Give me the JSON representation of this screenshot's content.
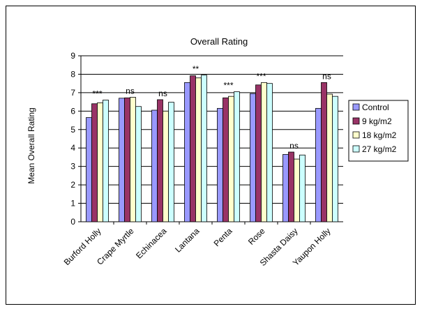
{
  "chart_data": {
    "type": "bar",
    "title": "Overall Rating",
    "ylabel": "Mean Overall Rating",
    "xlabel": "",
    "ylim": [
      0,
      9
    ],
    "yticks": [
      0,
      1,
      2,
      3,
      4,
      5,
      6,
      7,
      8,
      9
    ],
    "grid": true,
    "legend_position": "right",
    "categories": [
      "Burford Holly",
      "Crape Myrtle",
      "Echinacea",
      "Lantana",
      "Penta",
      "Rose",
      "Shasta Daisy",
      "Yaupon Holly"
    ],
    "annotations": [
      "***",
      "ns",
      "ns",
      "**",
      "***",
      "***",
      "ns",
      "ns"
    ],
    "series": [
      {
        "name": "Control",
        "color": "#9999ff",
        "values": [
          5.65,
          6.7,
          6.05,
          7.55,
          6.15,
          6.95,
          3.65,
          6.15
        ]
      },
      {
        "name": "9 kg/m2",
        "color": "#993366",
        "values": [
          6.4,
          6.72,
          6.62,
          7.92,
          6.72,
          7.42,
          3.78,
          7.55
        ]
      },
      {
        "name": "18 kg/m2",
        "color": "#ffffcc",
        "values": [
          6.45,
          6.75,
          6.0,
          7.8,
          6.8,
          7.55,
          3.4,
          6.92
        ]
      },
      {
        "name": "27 kg/m2",
        "color": "#ccffff",
        "values": [
          6.6,
          6.25,
          6.48,
          7.95,
          7.05,
          7.5,
          3.62,
          6.8
        ]
      }
    ]
  }
}
